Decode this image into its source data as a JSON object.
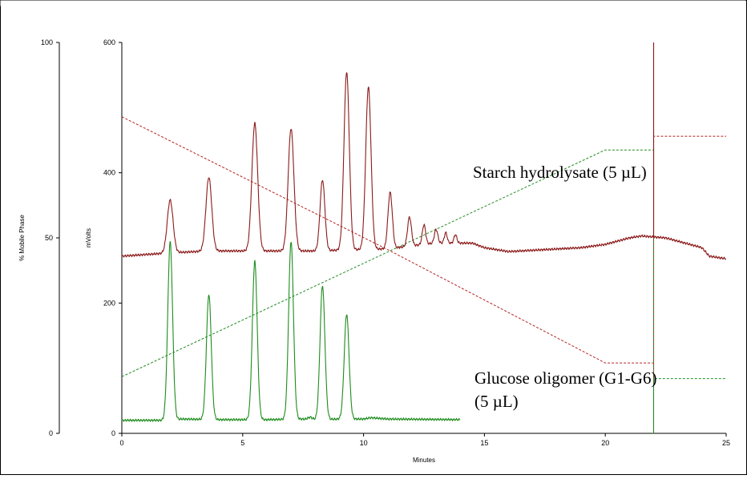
{
  "chart_data": {
    "type": "line",
    "title": "",
    "xlabel": "Minutes",
    "ylabel_left": "% Mobile Phase",
    "ylabel_right": "mVolts",
    "xlim": [
      0,
      25
    ],
    "ylim_left": [
      0,
      100
    ],
    "ylim_right": [
      0,
      600
    ],
    "xticks": [
      "0",
      "5",
      "10",
      "15",
      "20",
      "25"
    ],
    "yticks_left": [
      "0",
      "50",
      "100"
    ],
    "yticks_right": [
      "0",
      "200",
      "400",
      "600"
    ],
    "grid": false,
    "legend": "none",
    "colors": {
      "starch": "#8b1a1a",
      "glucose": "#1e8c1e",
      "gradient_red": "#b22222",
      "gradient_green": "#228b22"
    },
    "annotations": [
      {
        "id": "starch",
        "text": "Starch hydrolysate (5 µL)"
      },
      {
        "id": "glucose1",
        "text": "Glucose oligomer (G1-G6)"
      },
      {
        "id": "glucose2",
        "text": "(5 µL)"
      }
    ],
    "series": [
      {
        "id": "starch_trace",
        "axis": "right",
        "style": "solid",
        "baseline": [
          [
            0,
            272
          ],
          [
            2,
            277
          ],
          [
            3.6,
            280
          ],
          [
            5.5,
            280
          ],
          [
            7,
            280
          ],
          [
            8.3,
            280
          ],
          [
            9.3,
            282
          ],
          [
            10.2,
            282
          ],
          [
            11.2,
            284
          ],
          [
            12,
            288
          ],
          [
            13,
            292
          ],
          [
            14.5,
            292
          ],
          [
            15,
            285
          ],
          [
            16,
            279
          ],
          [
            18,
            283
          ],
          [
            19,
            285
          ],
          [
            20,
            290
          ],
          [
            21,
            300
          ],
          [
            21.5,
            303
          ],
          [
            22.5,
            300
          ],
          [
            23.5,
            290
          ],
          [
            24,
            285
          ],
          [
            24.3,
            272
          ],
          [
            25,
            268
          ]
        ],
        "peaks": [
          {
            "t": 2.0,
            "h": 358,
            "w": 0.12
          },
          {
            "t": 3.6,
            "h": 393,
            "w": 0.12
          },
          {
            "t": 5.5,
            "h": 476,
            "w": 0.12
          },
          {
            "t": 7.0,
            "h": 468,
            "w": 0.12
          },
          {
            "t": 8.3,
            "h": 389,
            "w": 0.1
          },
          {
            "t": 9.3,
            "h": 555,
            "w": 0.11
          },
          {
            "t": 10.2,
            "h": 532,
            "w": 0.11
          },
          {
            "t": 11.1,
            "h": 370,
            "w": 0.09
          },
          {
            "t": 11.9,
            "h": 332,
            "w": 0.08
          },
          {
            "t": 12.5,
            "h": 320,
            "w": 0.07
          },
          {
            "t": 13.0,
            "h": 313,
            "w": 0.07
          },
          {
            "t": 13.4,
            "h": 308,
            "w": 0.06
          },
          {
            "t": 13.8,
            "h": 305,
            "w": 0.06
          }
        ],
        "spike": {
          "t": 22.0,
          "from": 300,
          "to": 600
        }
      },
      {
        "id": "glucose_trace",
        "axis": "right",
        "style": "solid",
        "baseline": [
          [
            0,
            20
          ],
          [
            1.7,
            20
          ],
          [
            2.5,
            22
          ],
          [
            4,
            21
          ],
          [
            6,
            21
          ],
          [
            7.6,
            22
          ],
          [
            7.8,
            25
          ],
          [
            8,
            21
          ],
          [
            9,
            22
          ],
          [
            10,
            22
          ],
          [
            10.3,
            24
          ],
          [
            11,
            22
          ],
          [
            14,
            21
          ]
        ],
        "peaks": [
          {
            "t": 2.0,
            "h": 294,
            "w": 0.1
          },
          {
            "t": 3.6,
            "h": 213,
            "w": 0.1
          },
          {
            "t": 5.5,
            "h": 264,
            "w": 0.1
          },
          {
            "t": 7.0,
            "h": 295,
            "w": 0.1
          },
          {
            "t": 8.3,
            "h": 227,
            "w": 0.1
          },
          {
            "t": 9.3,
            "h": 183,
            "w": 0.1
          }
        ]
      },
      {
        "id": "gradient_red",
        "axis": "left",
        "style": "dashed",
        "points": [
          [
            0,
            81
          ],
          [
            11,
            47
          ],
          [
            20,
            18
          ],
          [
            22,
            18
          ],
          [
            22,
            0
          ],
          [
            22,
            76
          ],
          [
            25,
            76
          ]
        ]
      },
      {
        "id": "gradient_green",
        "axis": "left",
        "style": "dashed",
        "points": [
          [
            0,
            14.5
          ],
          [
            20,
            72.5
          ],
          [
            22,
            72.5
          ],
          [
            22,
            0
          ],
          [
            22,
            14
          ],
          [
            25,
            14
          ]
        ]
      }
    ]
  }
}
